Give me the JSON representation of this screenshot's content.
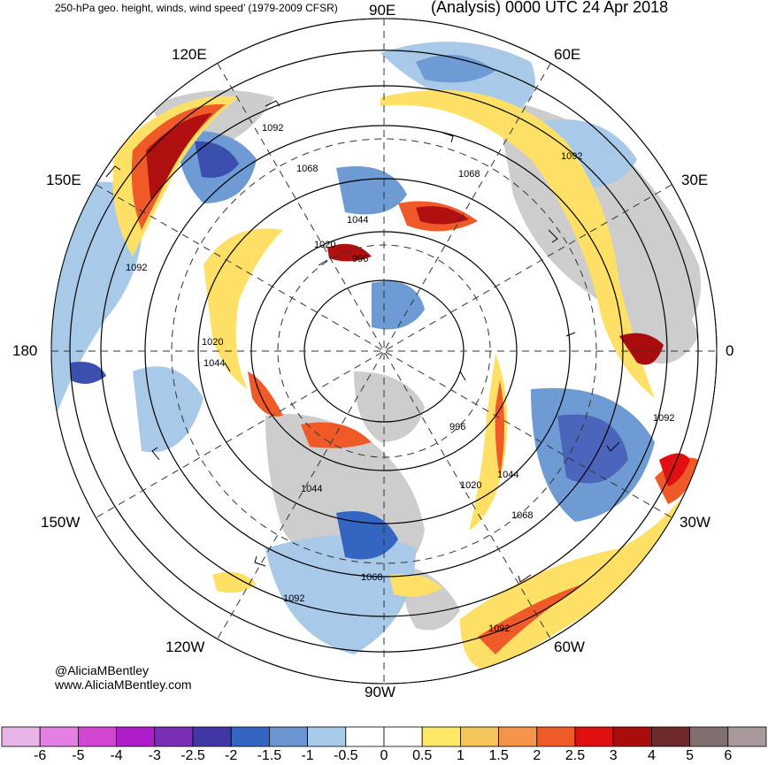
{
  "header": {
    "left_title": "250-hPa geo. height, winds, wind speed’ (1979-2009 CFSR)",
    "right_title": "(Analysis) 0000 UTC 24 Apr 2018"
  },
  "map": {
    "projection": "north-polar-stereographic",
    "longitude_labels": [
      "90E",
      "60E",
      "30E",
      "0",
      "30W",
      "60W",
      "90W",
      "120W",
      "150W",
      "180",
      "150E",
      "120E"
    ],
    "contour_labels": [
      "1092",
      "1068",
      "1044",
      "1020",
      "996",
      "1068",
      "1092",
      "1092",
      "1020",
      "1044",
      "996",
      "1092",
      "1044",
      "1020",
      "1044",
      "1068",
      "1068",
      "1092",
      "1092"
    ],
    "colors": {
      "positive_strong": "#b01010",
      "positive_mid": "#ef5a28",
      "positive_weak": "#ffe066",
      "negative_weak": "#a9c9e8",
      "negative_mid": "#6e9bd4",
      "negative_strong": "#3b4fae",
      "land": "#c8c8c8",
      "coastline": "#444444"
    }
  },
  "credits": {
    "handle": "@AliciaMBentley",
    "website": "www.AliciaMBentley.com"
  },
  "colorbar": {
    "ticks": [
      "-6",
      "-5",
      "-4",
      "-3",
      "-2.5",
      "-2",
      "-1.5",
      "-1",
      "-0.5",
      "0",
      "0.5",
      "1",
      "1.5",
      "2",
      "2.5",
      "3",
      "4",
      "5",
      "6"
    ],
    "colors": [
      "#e8b4e8",
      "#e37fe3",
      "#d246d2",
      "#b01ecc",
      "#7a2eb5",
      "#4237a6",
      "#3465c0",
      "#6b95d1",
      "#a9c9e8",
      "#ffffff",
      "#ffffff",
      "#ffe866",
      "#f5c45a",
      "#f4934a",
      "#ef5a28",
      "#e01010",
      "#a80c0c",
      "#6e2a2a",
      "#807070",
      "#a89a9a"
    ]
  }
}
